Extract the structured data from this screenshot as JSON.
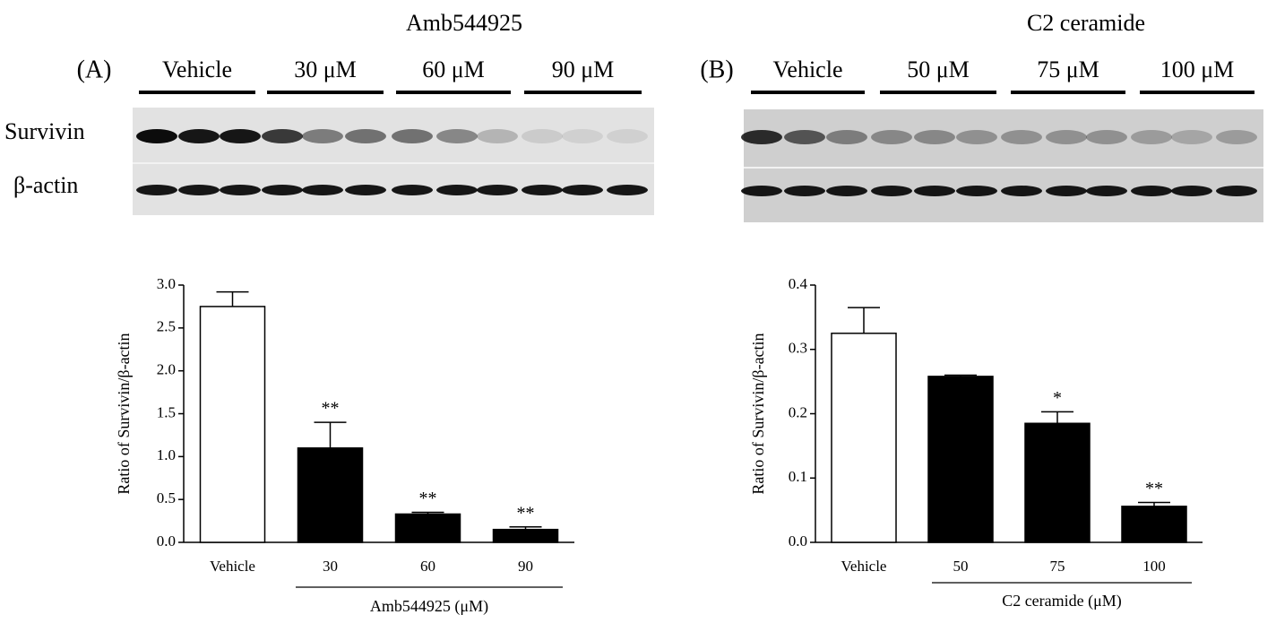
{
  "chart_data": [
    {
      "type": "bar",
      "panel_label": "(A)",
      "blot_title": "Amb544925",
      "lanes": [
        "Vehicle",
        "30 μM",
        "60 μM",
        "90 μM"
      ],
      "blot_rows": [
        "Survivin",
        "β-actin"
      ],
      "ylabel": "Ratio of Survivin/β-actin",
      "xlabel": "Amb544925 (μM)",
      "categories": [
        "Vehicle",
        "30",
        "60",
        "90"
      ],
      "values": [
        2.75,
        1.1,
        0.33,
        0.15
      ],
      "errors": [
        0.17,
        0.3,
        0.02,
        0.03
      ],
      "significance": [
        null,
        "**",
        "**",
        "**"
      ],
      "colors": [
        "#ffffff",
        "#000000",
        "#000000",
        "#000000"
      ],
      "ylim": [
        0,
        3
      ],
      "yticks": [
        {
          "value": 0,
          "label": "0.0"
        },
        0.5,
        {
          "value": 1,
          "label": "1.0"
        },
        1.5,
        {
          "value": 2,
          "label": "2.0"
        },
        2.5,
        {
          "value": 3,
          "label": "3.0"
        }
      ]
    },
    {
      "type": "bar",
      "panel_label": "(B)",
      "blot_title": "C2 ceramide",
      "lanes": [
        "Vehicle",
        "50 μM",
        "75 μM",
        "100 μM"
      ],
      "blot_rows": [
        "Survivin",
        "β-actin"
      ],
      "ylabel": "Ratio of Survivin/β-actin",
      "xlabel": "C2 ceramide (μM)",
      "categories": [
        "Vehicle",
        "50",
        "75",
        "100"
      ],
      "values": [
        0.325,
        0.258,
        0.185,
        0.056
      ],
      "errors": [
        0.04,
        0.002,
        0.018,
        0.006
      ],
      "significance": [
        null,
        null,
        "*",
        "**"
      ],
      "colors": [
        "#ffffff",
        "#000000",
        "#000000",
        "#000000"
      ],
      "ylim": [
        0,
        0.4
      ],
      "yticks": [
        {
          "value": 0,
          "label": "0.0"
        },
        0.1,
        0.2,
        0.3,
        0.4
      ]
    }
  ]
}
